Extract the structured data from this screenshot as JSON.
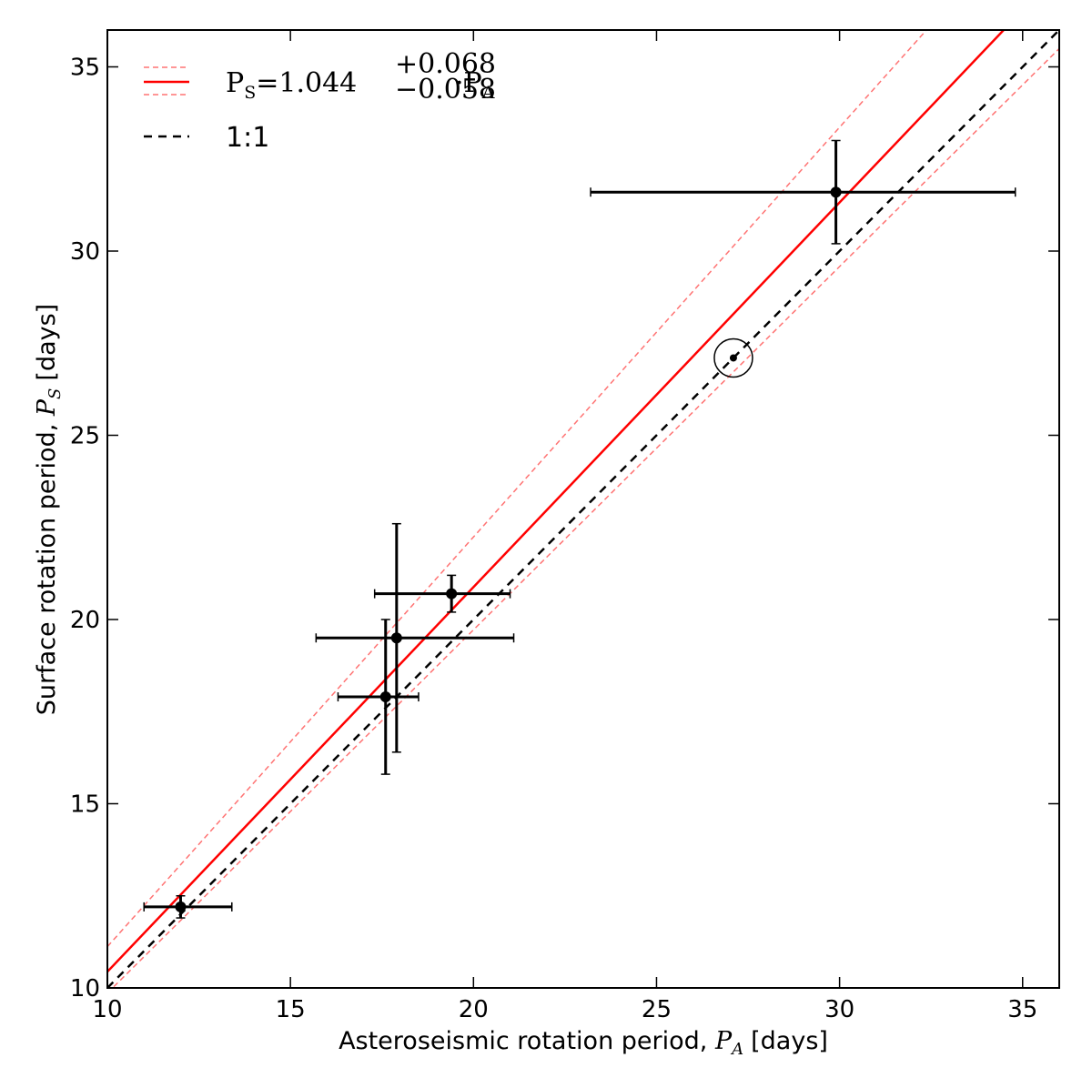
{
  "chart_data": {
    "type": "scatter",
    "xlabel_prefix": "Asteroseismic rotation period,",
    "xlabel_symbol": "P",
    "xlabel_sub": "A",
    "xlabel_suffix": "[days]",
    "ylabel_prefix": "Surface rotation period,",
    "ylabel_symbol": "P",
    "ylabel_sub": "S",
    "ylabel_suffix": "[days]",
    "xlim": [
      10,
      36
    ],
    "ylim": [
      10,
      36
    ],
    "xticks": [
      10,
      15,
      20,
      25,
      30,
      35
    ],
    "yticks": [
      10,
      15,
      20,
      25,
      30,
      35
    ],
    "grid": false,
    "legend_position": "top-left",
    "points": [
      {
        "x": 12.0,
        "y": 12.2,
        "xerr": [
          1.0,
          1.4
        ],
        "yerr": [
          0.3,
          0.3
        ]
      },
      {
        "x": 17.6,
        "y": 17.9,
        "xerr": [
          1.3,
          0.9
        ],
        "yerr": [
          2.1,
          2.1
        ]
      },
      {
        "x": 17.9,
        "y": 19.5,
        "xerr": [
          2.2,
          3.2
        ],
        "yerr": [
          3.1,
          3.1
        ]
      },
      {
        "x": 19.4,
        "y": 20.7,
        "xerr": [
          2.1,
          1.6
        ],
        "yerr": [
          0.5,
          0.5
        ]
      },
      {
        "x": 29.9,
        "y": 31.6,
        "xerr": [
          6.7,
          4.9
        ],
        "yerr": [
          1.4,
          1.4
        ]
      }
    ],
    "sun": {
      "x": 27.1,
      "y": 27.1
    },
    "fit": {
      "slope": 1.044,
      "slope_upper": 1.112,
      "slope_lower": 0.986,
      "color": "#ff0000",
      "label_lhs": "P",
      "label_lhs_sub": "S",
      "label_eq": "=1.044",
      "label_sup": "+0.068",
      "label_sub": "−0.058",
      "label_rhs": "·P",
      "label_rhs_sub": "A"
    },
    "one_to_one": {
      "slope": 1.0,
      "color": "#000000",
      "label": "1:1"
    }
  }
}
